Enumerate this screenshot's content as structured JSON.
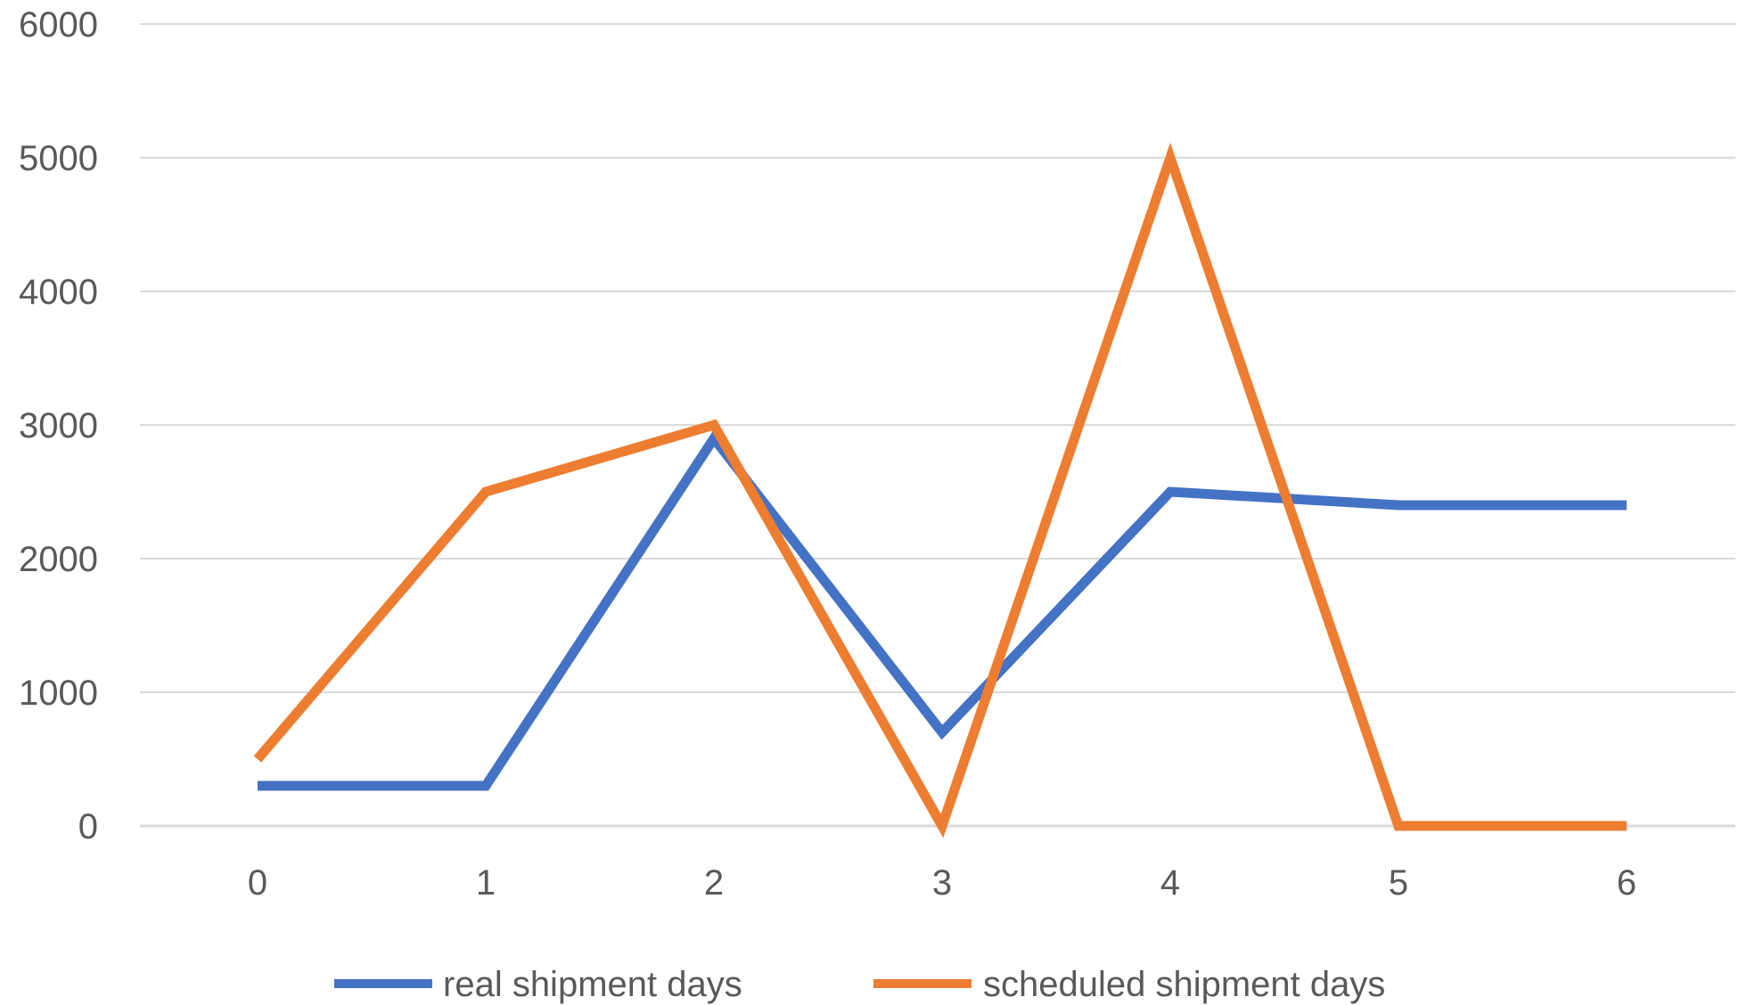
{
  "chart_data": {
    "type": "line",
    "title": "",
    "xlabel": "",
    "ylabel": "",
    "x": [
      0,
      1,
      2,
      3,
      4,
      5,
      6
    ],
    "x_ticks": [
      "0",
      "1",
      "2",
      "3",
      "4",
      "5",
      "6"
    ],
    "y_ticks": [
      "0",
      "1000",
      "2000",
      "3000",
      "4000",
      "5000",
      "6000"
    ],
    "ylim": [
      0,
      6000
    ],
    "grid": true,
    "legend_position": "bottom",
    "series": [
      {
        "name": "real shipment days",
        "color": "#4472C4",
        "values": [
          300,
          300,
          2900,
          700,
          2500,
          2400,
          2400
        ]
      },
      {
        "name": "scheduled shipment days",
        "color": "#ED7D31",
        "values": [
          500,
          2500,
          3000,
          0,
          5000,
          0,
          0
        ]
      }
    ],
    "gridline_color": "#D9D9D9"
  }
}
